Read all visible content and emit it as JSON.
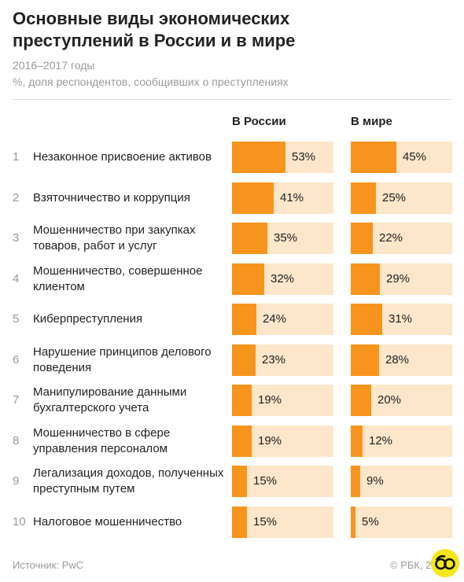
{
  "header": {
    "title": "Основные виды экономических преступлений в России и в мире",
    "subtitle_years": "2016–2017 годы",
    "subtitle_unit": "%, доля респондентов, сообщивших о преступлениях"
  },
  "columns": {
    "russia": "В России",
    "world": "В мире"
  },
  "footer": {
    "source": "Источник: PwC",
    "copyright": "© РБК, 2"
  },
  "colors": {
    "bar_fill": "#f7941d",
    "bar_track": "#fde6c9"
  },
  "chart_data": {
    "type": "bar",
    "orientation": "horizontal",
    "xlim": [
      0,
      100
    ],
    "categories": [
      "Незаконное присвоение активов",
      "Взяточничество и коррупция",
      "Мошенничество при закупках товаров, работ и услуг",
      "Мошенничество, совершенное клиентом",
      "Киберпреступления",
      "Нарушение принципов делового поведения",
      "Манипулирование данными бухгалтерского учета",
      "Мошенничество в сфере управления персоналом",
      "Легализация доходов, полученных преступным путем",
      "Налоговое мошенничество"
    ],
    "series": [
      {
        "name": "В России",
        "values": [
          53,
          41,
          35,
          32,
          24,
          23,
          19,
          19,
          15,
          15
        ]
      },
      {
        "name": "В мире",
        "values": [
          45,
          25,
          22,
          29,
          31,
          28,
          20,
          12,
          9,
          5
        ]
      }
    ]
  },
  "rows": [
    {
      "num": "1",
      "label": "Незаконное присвоение активов",
      "ru_text": "53%",
      "wd_text": "45%"
    },
    {
      "num": "2",
      "label": "Взяточничество и коррупция",
      "ru_text": "41%",
      "wd_text": "25%"
    },
    {
      "num": "3",
      "label": "Мошенничество при закупках товаров, работ и услуг",
      "ru_text": "35%",
      "wd_text": "22%"
    },
    {
      "num": "4",
      "label": "Мошенничество, совершенное клиентом",
      "ru_text": "32%",
      "wd_text": "29%"
    },
    {
      "num": "5",
      "label": "Киберпреступления",
      "ru_text": "24%",
      "wd_text": "31%"
    },
    {
      "num": "6",
      "label": "Нарушение принципов делового поведения",
      "ru_text": "23%",
      "wd_text": "28%"
    },
    {
      "num": "7",
      "label": "Манипулирование данными бухгалтерского учета",
      "ru_text": "19%",
      "wd_text": "20%"
    },
    {
      "num": "8",
      "label": "Мошенничество в сфере управления персоналом",
      "ru_text": "19%",
      "wd_text": "12%"
    },
    {
      "num": "9",
      "label": "Легализация доходов, полученных преступным путем",
      "ru_text": "15%",
      "wd_text": "9%"
    },
    {
      "num": "10",
      "label": "Налоговое мошенничество",
      "ru_text": "15%",
      "wd_text": "5%"
    }
  ]
}
